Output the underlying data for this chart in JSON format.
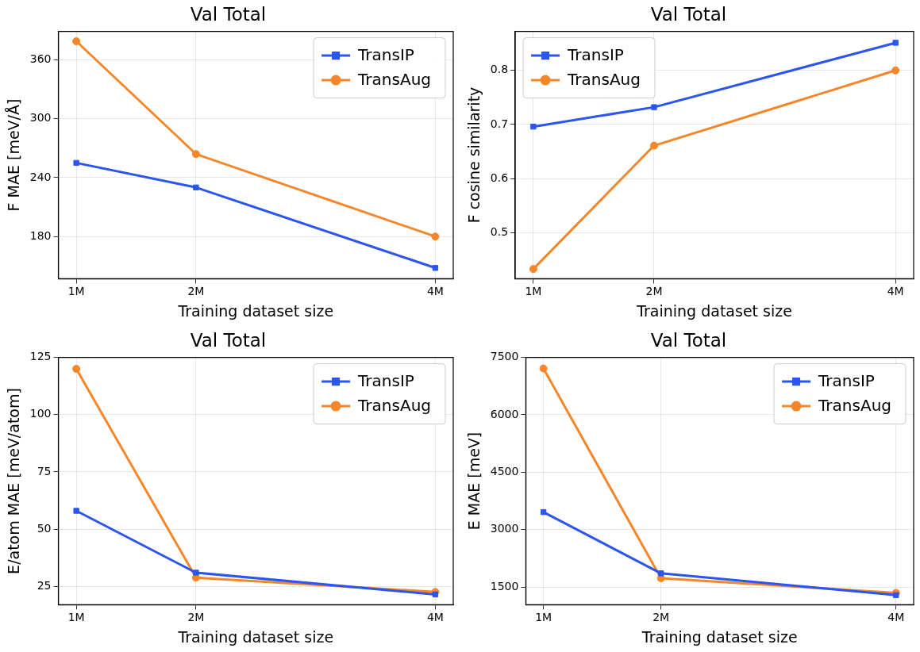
{
  "chart_data": [
    {
      "type": "line",
      "title": "Val Total",
      "xlabel": "Training dataset size",
      "ylabel": "F MAE [meV/Å]",
      "x": [
        1,
        2,
        4
      ],
      "xlim": [
        0.85,
        4.15
      ],
      "xticks": [
        {
          "value": 1,
          "label": "1M"
        },
        {
          "value": 2,
          "label": "2M"
        },
        {
          "value": 4,
          "label": "4M"
        }
      ],
      "ylim": [
        137,
        389
      ],
      "yticks": [
        180,
        240,
        300,
        360
      ],
      "grid": true,
      "legend": "top right",
      "line_style": "solid",
      "series": [
        {
          "name": "TransIP",
          "color": "#2b55f0",
          "marker": "square",
          "values": [
            255,
            230,
            148
          ]
        },
        {
          "name": "TransAug",
          "color": "#f5862a",
          "marker": "circle",
          "values": [
            379,
            264,
            180
          ]
        }
      ]
    },
    {
      "type": "line",
      "title": "Val Total",
      "xlabel": "Training dataset size",
      "ylabel": "F cosine similarity",
      "x": [
        1,
        2,
        4
      ],
      "xlim": [
        0.85,
        4.15
      ],
      "xticks": [
        {
          "value": 1,
          "label": "1M"
        },
        {
          "value": 2,
          "label": "2M"
        },
        {
          "value": 4,
          "label": "4M"
        }
      ],
      "ylim": [
        0.415,
        0.872
      ],
      "yticks": [
        0.5,
        0.6,
        0.7,
        0.8
      ],
      "grid": true,
      "legend": "top left",
      "line_style": "solid",
      "series": [
        {
          "name": "TransIP",
          "color": "#2b55f0",
          "marker": "square",
          "values": [
            0.696,
            0.732,
            0.851
          ]
        },
        {
          "name": "TransAug",
          "color": "#f5862a",
          "marker": "circle",
          "values": [
            0.433,
            0.661,
            0.8
          ]
        }
      ]
    },
    {
      "type": "line",
      "title": "Val Total",
      "xlabel": "Training dataset size",
      "ylabel": "E/atom MAE [meV/atom]",
      "x": [
        1,
        2,
        4
      ],
      "xlim": [
        0.85,
        4.15
      ],
      "xticks": [
        {
          "value": 1,
          "label": "1M"
        },
        {
          "value": 2,
          "label": "2M"
        },
        {
          "value": 4,
          "label": "4M"
        }
      ],
      "ylim": [
        17,
        125
      ],
      "yticks": [
        25,
        50,
        75,
        100,
        125
      ],
      "grid": true,
      "legend": "top right",
      "line_style": "solid",
      "series": [
        {
          "name": "TransIP",
          "color": "#2b55f0",
          "marker": "square",
          "values": [
            58,
            31,
            21.5
          ]
        },
        {
          "name": "TransAug",
          "color": "#f5862a",
          "marker": "circle",
          "values": [
            120,
            28.8,
            22.6
          ]
        }
      ]
    },
    {
      "type": "line",
      "title": "Val Total",
      "xlabel": "Training dataset size",
      "ylabel": "E MAE [meV]",
      "x": [
        1,
        2,
        4
      ],
      "xlim": [
        0.85,
        4.15
      ],
      "xticks": [
        {
          "value": 1,
          "label": "1M"
        },
        {
          "value": 2,
          "label": "2M"
        },
        {
          "value": 4,
          "label": "4M"
        }
      ],
      "ylim": [
        1040,
        7500
      ],
      "yticks": [
        1500,
        3000,
        4500,
        6000,
        7500
      ],
      "grid": true,
      "legend": "top right",
      "line_style": "solid",
      "series": [
        {
          "name": "TransIP",
          "color": "#2b55f0",
          "marker": "square",
          "values": [
            3460,
            1860,
            1290
          ]
        },
        {
          "name": "TransAug",
          "color": "#f5862a",
          "marker": "circle",
          "values": [
            7210,
            1730,
            1350
          ]
        }
      ]
    }
  ]
}
